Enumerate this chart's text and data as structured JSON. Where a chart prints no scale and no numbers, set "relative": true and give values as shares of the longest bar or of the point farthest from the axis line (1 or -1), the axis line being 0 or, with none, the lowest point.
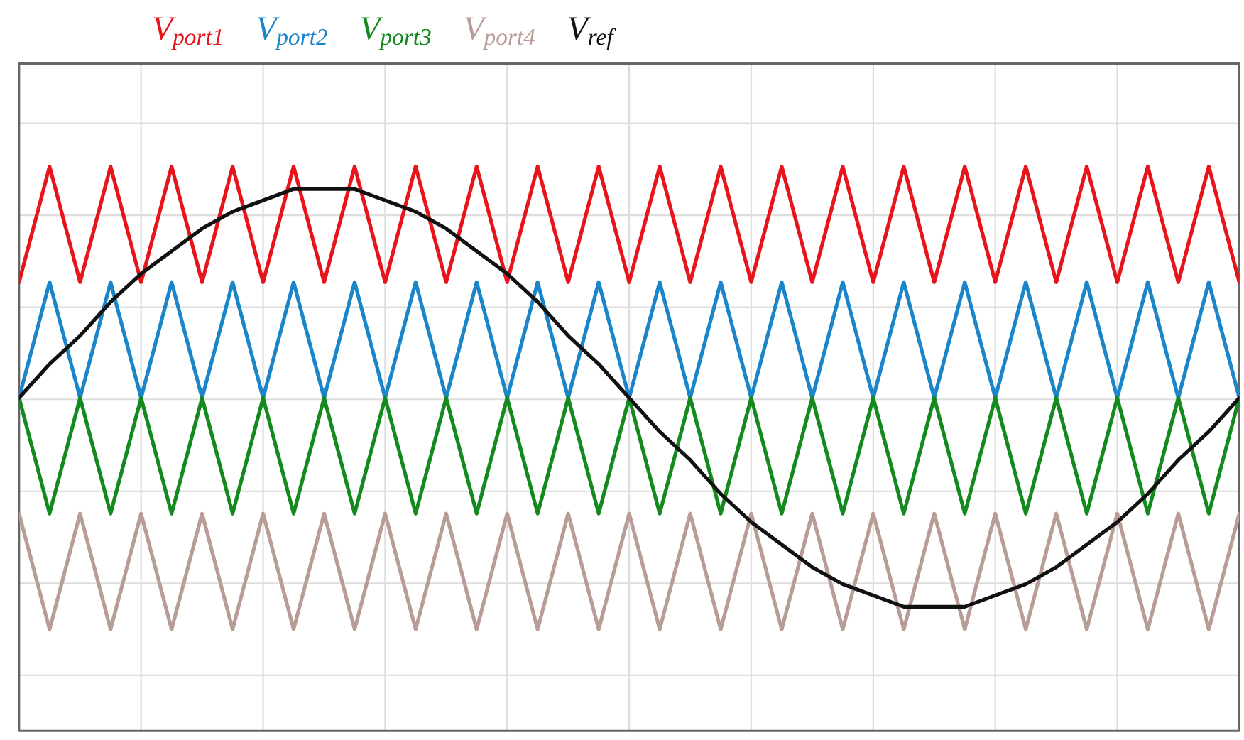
{
  "chart_data": {
    "type": "line",
    "relative": true,
    "grid": true,
    "legend": "top",
    "marker": "none",
    "line_style": "solid",
    "categories": [
      null,
      null,
      null,
      null,
      null,
      null,
      null,
      null,
      null,
      null,
      null,
      null,
      null,
      null,
      null,
      null,
      null,
      null,
      null,
      null,
      null,
      null,
      null,
      null,
      null,
      null,
      null,
      null,
      null,
      null,
      null,
      null,
      null,
      null,
      null,
      null,
      null,
      null,
      null,
      null,
      null
    ],
    "series": [
      {
        "name": "V$_{port1}$",
        "color": "#e8141c",
        "values": [
          0.795,
          1,
          0.795,
          1,
          0.795,
          1,
          0.795,
          1,
          0.795,
          1,
          0.795,
          1,
          0.795,
          1,
          0.795,
          1,
          0.795,
          1,
          0.795,
          1,
          0.795,
          1,
          0.795,
          1,
          0.795,
          1,
          0.795,
          1,
          0.795,
          1,
          0.795,
          1,
          0.795,
          1,
          0.795,
          1,
          0.795,
          1,
          0.795,
          1,
          0.795
        ]
      },
      {
        "name": "V$_{port2}$",
        "color": "#1a85c8",
        "values": [
          0.59,
          0.795,
          0.59,
          0.795,
          0.59,
          0.795,
          0.59,
          0.795,
          0.59,
          0.795,
          0.59,
          0.795,
          0.59,
          0.795,
          0.59,
          0.795,
          0.59,
          0.795,
          0.59,
          0.795,
          0.59,
          0.795,
          0.59,
          0.795,
          0.59,
          0.795,
          0.59,
          0.795,
          0.59,
          0.795,
          0.59,
          0.795,
          0.59,
          0.795,
          0.59,
          0.795,
          0.59,
          0.795,
          0.59,
          0.795,
          0.59
        ]
      },
      {
        "name": "V$_{port3}$",
        "color": "#148a1e",
        "values": [
          0.59,
          0.385,
          0.59,
          0.385,
          0.59,
          0.385,
          0.59,
          0.385,
          0.59,
          0.385,
          0.59,
          0.385,
          0.59,
          0.385,
          0.59,
          0.385,
          0.59,
          0.385,
          0.59,
          0.385,
          0.59,
          0.385,
          0.59,
          0.385,
          0.59,
          0.385,
          0.59,
          0.385,
          0.59,
          0.385,
          0.59,
          0.385,
          0.59,
          0.385,
          0.59,
          0.385,
          0.59,
          0.385,
          0.59,
          0.385,
          0.59
        ]
      },
      {
        "name": "V$_{port4}$",
        "color": "#b89c96",
        "values": [
          0.385,
          0.18,
          0.385,
          0.18,
          0.385,
          0.18,
          0.385,
          0.18,
          0.385,
          0.18,
          0.385,
          0.18,
          0.385,
          0.18,
          0.385,
          0.18,
          0.385,
          0.18,
          0.385,
          0.18,
          0.385,
          0.18,
          0.385,
          0.18,
          0.385,
          0.18,
          0.385,
          0.18,
          0.385,
          0.18,
          0.385,
          0.18,
          0.385,
          0.18,
          0.385,
          0.18,
          0.385,
          0.18,
          0.385,
          0.18,
          0.385
        ]
      },
      {
        "name": "V$_{ref}$",
        "color": "#111111",
        "values": [
          0.59,
          0.65,
          0.7,
          0.76,
          0.81,
          0.85,
          0.89,
          0.92,
          0.94,
          0.96,
          0.96,
          0.96,
          0.94,
          0.92,
          0.89,
          0.85,
          0.81,
          0.76,
          0.7,
          0.65,
          0.59,
          0.53,
          0.48,
          0.42,
          0.37,
          0.33,
          0.29,
          0.26,
          0.24,
          0.22,
          0.22,
          0.22,
          0.24,
          0.26,
          0.29,
          0.33,
          0.37,
          0.42,
          0.48,
          0.53,
          0.59
        ]
      }
    ]
  }
}
